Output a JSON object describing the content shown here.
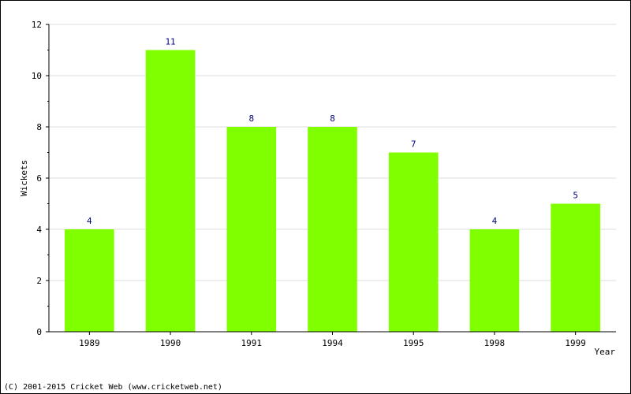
{
  "chart_data": {
    "type": "bar",
    "title": "",
    "xlabel": "Year",
    "ylabel": "Wickets",
    "categories": [
      "1989",
      "1990",
      "1991",
      "1994",
      "1995",
      "1998",
      "1999"
    ],
    "values": [
      4,
      11,
      8,
      8,
      7,
      4,
      5
    ],
    "ylim": [
      0,
      12
    ],
    "yticks": [
      0,
      2,
      4,
      6,
      8,
      10,
      12
    ],
    "grid": true,
    "colors": {
      "bar": "#80ff00",
      "value_label": "#000080",
      "grid": "#dddddd",
      "axis": "#000000"
    }
  },
  "footer": {
    "copyright": "(C) 2001-2015 Cricket Web (www.cricketweb.net)"
  }
}
